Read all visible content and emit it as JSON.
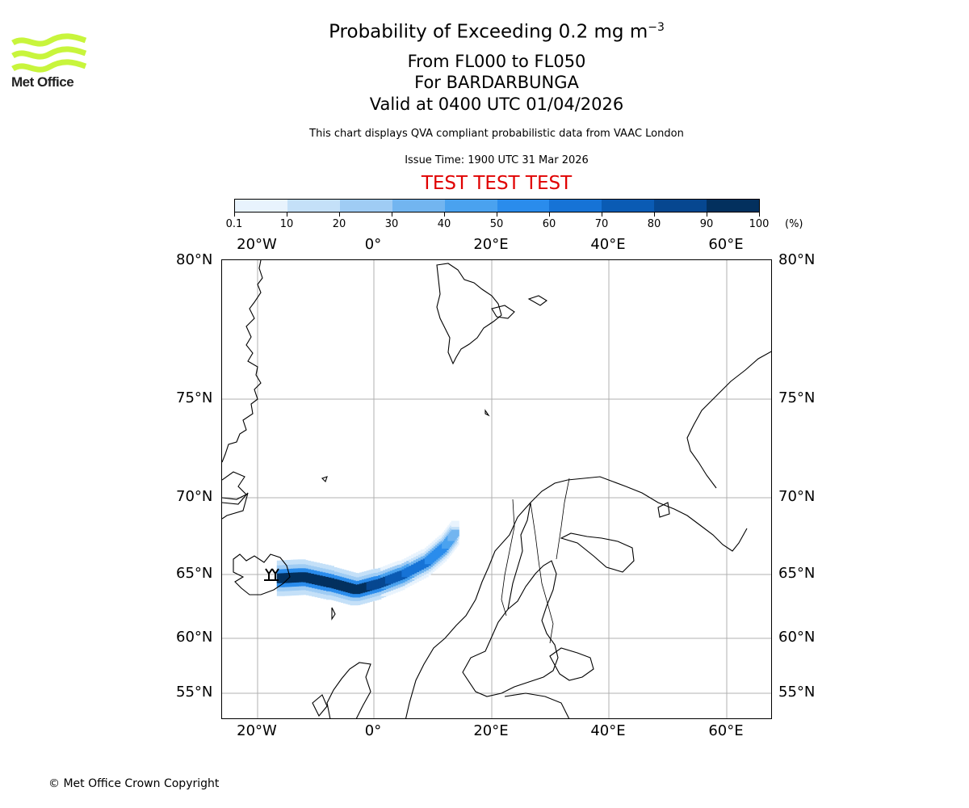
{
  "brand": {
    "name": "Met Office",
    "color": "#c8f53c"
  },
  "title": {
    "main": "Probability of Exceeding 0.2 mg m",
    "superscript": "−3",
    "levels": "From FL000 to FL050",
    "volcano": "For BARDARBUNGA",
    "valid": "Valid at 0400 UTC 01/04/2026",
    "description": "This chart displays QVA compliant probabilistic data from VAAC London",
    "issue_time": "Issue Time: 1900 UTC 31 Mar 2026",
    "test_banner": "TEST TEST TEST"
  },
  "colorbar": {
    "labels": [
      "0.1",
      "10",
      "20",
      "30",
      "40",
      "50",
      "60",
      "70",
      "80",
      "90",
      "100"
    ],
    "unit": "(%)",
    "colors": [
      "#e8f3fd",
      "#c4e0f8",
      "#9fccf4",
      "#72b5f0",
      "#4aa2ef",
      "#2a8cec",
      "#1673d6",
      "#0a5bb4",
      "#064790",
      "#03305e"
    ]
  },
  "map": {
    "lon_labels": [
      "20°W",
      "0°",
      "20°E",
      "40°E",
      "60°E"
    ],
    "lat_labels": [
      "80°N",
      "75°N",
      "70°N",
      "65°N",
      "60°N",
      "55°N"
    ],
    "grid_color": "#b0b0b0"
  },
  "chart_data": {
    "type": "heatmap",
    "title": "Probability of Exceeding 0.2 mg m−3",
    "variable": "probability (%)",
    "extent": {
      "lon": [
        -26,
        68
      ],
      "lat": [
        53,
        80
      ]
    },
    "plume_axis": [
      {
        "lon": -16,
        "lat": 64.7,
        "prob": 95
      },
      {
        "lon": -12,
        "lat": 64.8,
        "prob": 90
      },
      {
        "lon": -7,
        "lat": 64.3,
        "prob": 90
      },
      {
        "lon": -3,
        "lat": 63.8,
        "prob": 95
      },
      {
        "lon": 1,
        "lat": 64.3,
        "prob": 85
      },
      {
        "lon": 5,
        "lat": 65.0,
        "prob": 70
      },
      {
        "lon": 9,
        "lat": 65.8,
        "prob": 60
      },
      {
        "lon": 12,
        "lat": 66.8,
        "prob": 50
      },
      {
        "lon": 14,
        "lat": 67.8,
        "prob": 30
      }
    ]
  },
  "footer": {
    "copyright": "© Met Office Crown Copyright"
  }
}
